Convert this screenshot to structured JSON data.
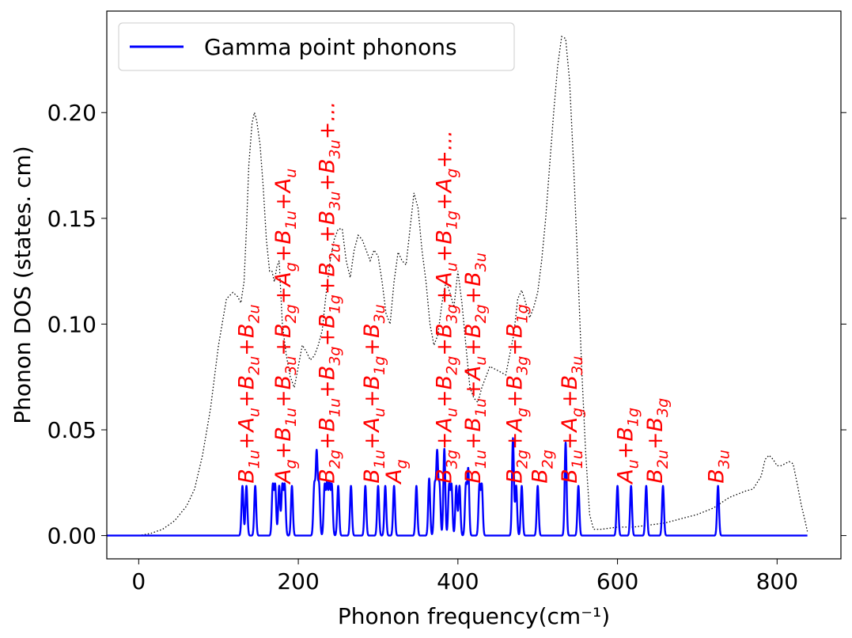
{
  "chart_data": {
    "type": "line",
    "title": "",
    "xlabel": "Phonon frequency(cm⁻¹)",
    "ylabel": "Phonon DOS (states. cm)",
    "xlim": [
      -40,
      880
    ],
    "ylim": [
      -0.011,
      0.248
    ],
    "x_ticks": [
      0,
      200,
      400,
      600,
      800
    ],
    "y_ticks": [
      0.0,
      0.05,
      0.1,
      0.15,
      0.2
    ],
    "x_tick_labels": [
      "0",
      "200",
      "400",
      "600",
      "800"
    ],
    "y_tick_labels": [
      "0.00",
      "0.05",
      "0.10",
      "0.15",
      "0.20"
    ],
    "grid": false,
    "legend_position": "top-left",
    "legend": [
      "Gamma point phonons"
    ],
    "colors": {
      "gamma": "#0000ff",
      "dos": "#000000",
      "labels": "#ff0000"
    },
    "series": [
      {
        "name": "Gamma point phonons",
        "style": "solid",
        "peak_width": 1.2,
        "peaks": [
          [
            130,
            0.0235
          ],
          [
            135,
            0.0235
          ],
          [
            146,
            0.0235
          ],
          [
            168,
            0.0235
          ],
          [
            171,
            0.0235
          ],
          [
            176,
            0.0235
          ],
          [
            180,
            0.0235
          ],
          [
            183,
            0.0235
          ],
          [
            192,
            0.0235
          ],
          [
            220,
            0.0235
          ],
          [
            223,
            0.0385
          ],
          [
            226,
            0.0235
          ],
          [
            233,
            0.0235
          ],
          [
            236,
            0.0235
          ],
          [
            239,
            0.0235
          ],
          [
            242,
            0.0235
          ],
          [
            250,
            0.0235
          ],
          [
            266,
            0.0235
          ],
          [
            284,
            0.0235
          ],
          [
            300,
            0.0235
          ],
          [
            309,
            0.0235
          ],
          [
            320,
            0.0235
          ],
          [
            348,
            0.0235
          ],
          [
            364,
            0.027
          ],
          [
            371,
            0.0235
          ],
          [
            374,
            0.0385
          ],
          [
            377,
            0.0235
          ],
          [
            383,
            0.041
          ],
          [
            389,
            0.0235
          ],
          [
            392,
            0.0235
          ],
          [
            398,
            0.0235
          ],
          [
            402,
            0.0235
          ],
          [
            410,
            0.0235
          ],
          [
            413,
            0.031
          ],
          [
            427,
            0.0235
          ],
          [
            430,
            0.0235
          ],
          [
            469,
            0.046
          ],
          [
            473,
            0.0235
          ],
          [
            480,
            0.0235
          ],
          [
            500,
            0.0235
          ],
          [
            535,
            0.044
          ],
          [
            551,
            0.0235
          ],
          [
            600,
            0.0235
          ],
          [
            617,
            0.0235
          ],
          [
            636,
            0.0235
          ],
          [
            657,
            0.0235
          ],
          [
            726,
            0.0235
          ]
        ],
        "x_range": [
          -40,
          838
        ]
      },
      {
        "name": "",
        "style": "dotted",
        "x": [
          -40,
          0,
          15,
          30,
          45,
          60,
          70,
          80,
          90,
          100,
          110,
          118,
          124,
          128,
          132,
          135,
          138,
          142,
          145,
          148,
          152,
          156,
          160,
          164,
          167,
          170,
          173,
          176,
          180,
          185,
          190,
          195,
          200,
          205,
          210,
          215,
          220,
          225,
          230,
          235,
          240,
          245,
          250,
          255,
          260,
          265,
          270,
          275,
          280,
          285,
          290,
          295,
          300,
          305,
          310,
          315,
          320,
          325,
          330,
          335,
          340,
          345,
          350,
          355,
          360,
          365,
          370,
          375,
          380,
          385,
          390,
          395,
          400,
          405,
          410,
          415,
          420,
          425,
          430,
          440,
          450,
          460,
          470,
          475,
          480,
          485,
          490,
          495,
          500,
          505,
          510,
          515,
          520,
          525,
          530,
          535,
          540,
          545,
          550,
          555,
          560,
          565,
          570,
          580,
          600,
          620,
          640,
          660,
          680,
          700,
          720,
          740,
          760,
          770,
          780,
          785,
          790,
          795,
          800,
          805,
          810,
          815,
          820,
          825,
          830,
          835,
          838
        ],
        "y": [
          0.0,
          0.0,
          0.001,
          0.003,
          0.007,
          0.014,
          0.022,
          0.038,
          0.06,
          0.09,
          0.112,
          0.115,
          0.113,
          0.11,
          0.12,
          0.145,
          0.175,
          0.195,
          0.2,
          0.196,
          0.185,
          0.165,
          0.14,
          0.125,
          0.125,
          0.12,
          0.127,
          0.13,
          0.1,
          0.085,
          0.075,
          0.07,
          0.08,
          0.09,
          0.087,
          0.083,
          0.085,
          0.09,
          0.097,
          0.115,
          0.13,
          0.14,
          0.145,
          0.145,
          0.13,
          0.122,
          0.135,
          0.142,
          0.14,
          0.135,
          0.13,
          0.135,
          0.132,
          0.12,
          0.105,
          0.1,
          0.12,
          0.134,
          0.13,
          0.128,
          0.145,
          0.162,
          0.155,
          0.135,
          0.12,
          0.1,
          0.09,
          0.095,
          0.11,
          0.12,
          0.115,
          0.108,
          0.125,
          0.11,
          0.09,
          0.07,
          0.065,
          0.063,
          0.07,
          0.08,
          0.078,
          0.076,
          0.095,
          0.112,
          0.116,
          0.11,
          0.103,
          0.108,
          0.115,
          0.13,
          0.15,
          0.175,
          0.2,
          0.222,
          0.236,
          0.235,
          0.215,
          0.175,
          0.13,
          0.08,
          0.04,
          0.01,
          0.003,
          0.003,
          0.004,
          0.004,
          0.005,
          0.006,
          0.008,
          0.01,
          0.013,
          0.018,
          0.021,
          0.022,
          0.028,
          0.036,
          0.038,
          0.036,
          0.033,
          0.033,
          0.034,
          0.035,
          0.034,
          0.025,
          0.015,
          0.007,
          0.002
        ]
      }
    ],
    "annotations": [
      {
        "x": 135,
        "y": 0.0235,
        "text": "B_{1u}+A_u+B_{2u}+B_{2u}"
      },
      {
        "x": 181,
        "y": 0.0235,
        "text": "A_g+B_{1u}+B_{3u}+B_{2g}+A_g+B_{1u}+A_u"
      },
      {
        "x": 236,
        "y": 0.0235,
        "text": "B_{2g}+B_{1u}+B_{3g}+B_{1g}+B_{2u}+B_{3u}+B_{3u}+..."
      },
      {
        "x": 292,
        "y": 0.0235,
        "text": "B_{1u}+A_u+B_{1g}+B_{3u}"
      },
      {
        "x": 320,
        "y": 0.0235,
        "text": "A_g"
      },
      {
        "x": 383,
        "y": 0.0235,
        "text": "B_{3g}+A_u+B_{2g}+B_{3g}+A_u+B_{1g}+A_g+..."
      },
      {
        "x": 419,
        "y": 0.0235,
        "text": "B_{1u}+B_{1u}+A_u+B_{2g}+B_{3u}"
      },
      {
        "x": 471,
        "y": 0.0235,
        "text": "B_{2g}+A_g+B_{3g}+B_{1g}"
      },
      {
        "x": 503,
        "y": 0.0235,
        "text": "B_{2g}"
      },
      {
        "x": 540,
        "y": 0.0235,
        "text": "B_{1u}+A_g+B_{3u}"
      },
      {
        "x": 610,
        "y": 0.0235,
        "text": "A_u+B_{1g}"
      },
      {
        "x": 647,
        "y": 0.0235,
        "text": "B_{2u}+B_{3g}"
      },
      {
        "x": 724,
        "y": 0.0235,
        "text": "B_{3u}"
      }
    ]
  }
}
